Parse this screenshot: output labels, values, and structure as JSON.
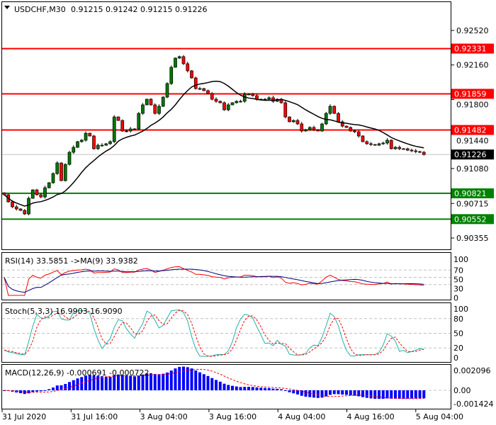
{
  "header": {
    "symbol_label": "USDCHF,M30",
    "ohlc_label": "0.91215 0.91242 0.91215 0.91226"
  },
  "colors": {
    "bull": "#007800",
    "bear": "#ff0000",
    "resistance": "#ff0000",
    "support": "#008000",
    "bid_line": "#c0c0c0",
    "bid_label_bg": "#000000",
    "ma_line": "#000000",
    "rsi": "#ff0000",
    "rsi_ma": "#000080",
    "stoch_main": "#20b2aa",
    "stoch_signal": "#ff0000",
    "macd_hist": "#0000ff",
    "macd_signal": "#ff0000"
  },
  "chart_data": [
    {
      "type": "candlestick",
      "title": "USDCHF,M30",
      "price_axis_ticks": [
        "0.92520",
        "0.92160",
        "0.91800",
        "0.91440",
        "0.91080",
        "0.90715",
        "0.90355"
      ],
      "ylim": [
        0.9018,
        0.9262
      ],
      "time_labels": [
        "31 Jul 2020",
        "31 Jul 16:00",
        "3 Aug 04:00",
        "3 Aug 16:00",
        "4 Aug 04:00",
        "4 Aug 16:00",
        "5 Aug 04:00"
      ],
      "closes": [
        0.90806,
        0.90732,
        0.9068,
        0.90658,
        0.90643,
        0.90606,
        0.90769,
        0.90857,
        0.90806,
        0.90783,
        0.90879,
        0.90931,
        0.91027,
        0.91138,
        0.90953,
        0.91123,
        0.91249,
        0.91301,
        0.9136,
        0.91375,
        0.91448,
        0.91419,
        0.91286,
        0.91323,
        0.91323,
        0.91338,
        0.9136,
        0.91618,
        0.91581,
        0.91471,
        0.91471,
        0.91493,
        0.91493,
        0.91655,
        0.91744,
        0.91803,
        0.91744,
        0.91655,
        0.91729,
        0.91825,
        0.91966,
        0.92136,
        0.92232,
        0.92247,
        0.92173,
        0.92099,
        0.92025,
        0.91914,
        0.91914,
        0.91892,
        0.91862,
        0.91803,
        0.91781,
        0.91766,
        0.91692,
        0.91744,
        0.91766,
        0.91781,
        0.91781,
        0.91855,
        0.91855,
        0.9184,
        0.91803,
        0.91803,
        0.91803,
        0.91818,
        0.91781,
        0.91803,
        0.91766,
        0.91618,
        0.91567,
        0.91581,
        0.91545,
        0.91471,
        0.91485,
        0.91508,
        0.91485,
        0.91471,
        0.91545,
        0.91655,
        0.91729,
        0.91655,
        0.91567,
        0.91522,
        0.91508,
        0.91471,
        0.91463,
        0.91419,
        0.9136,
        0.91338,
        0.9133,
        0.91323,
        0.91338,
        0.91345,
        0.91375,
        0.91286,
        0.91301,
        0.91286,
        0.91286,
        0.91271,
        0.91264,
        0.91256,
        0.91249,
        0.91226
      ],
      "levels": [
        {
          "price": "0.92331",
          "kind": "resistance"
        },
        {
          "price": "0.91859",
          "kind": "resistance"
        },
        {
          "price": "0.91482",
          "kind": "resistance"
        },
        {
          "price": "0.90821",
          "kind": "support"
        },
        {
          "price": "0.90552",
          "kind": "support"
        }
      ],
      "bid": "0.91226",
      "moving_average": "yes",
      "grid": false
    },
    {
      "type": "line",
      "title": "RSI(14) 33.5851  ->MA(9) 33.9382",
      "ticks": [
        "100",
        "70",
        "50",
        "30",
        "0"
      ],
      "ylim": [
        0,
        100
      ],
      "levels": [
        70,
        50,
        30
      ]
    },
    {
      "type": "line",
      "title": "Stoch(5,3,3) 16.9903 16.9090",
      "ticks": [
        "100",
        "80",
        "50",
        "20",
        "0"
      ],
      "ylim": [
        0,
        100
      ],
      "levels": [
        80,
        50,
        20
      ]
    },
    {
      "type": "bar",
      "title": "MACD(12,26,9) -0.000691 -0.000722",
      "ticks": [
        "0.002096",
        "0.00",
        "-0.001424"
      ],
      "ylim": [
        -0.001424,
        0.002096
      ]
    }
  ]
}
